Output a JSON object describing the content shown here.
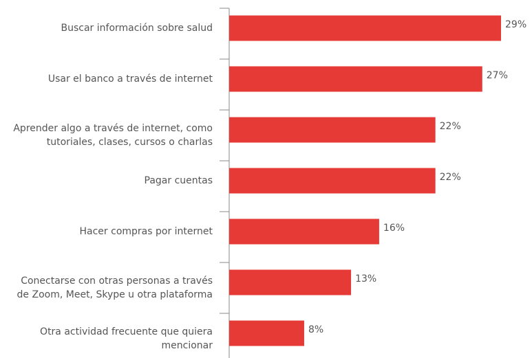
{
  "chart_data": {
    "type": "bar",
    "orientation": "horizontal",
    "categories": [
      "Buscar información sobre salud",
      "Usar el banco a través de internet",
      "Aprender algo a través de internet, como\ntutoriales, clases, cursos o charlas",
      "Pagar cuentas",
      "Hacer compras por internet",
      "Conectarse con otras personas a través\nde Zoom, Meet, Skype u otra plataforma",
      "Otra actividad frecuente que quiera\nmencionar"
    ],
    "values": [
      29,
      27,
      22,
      22,
      16,
      13,
      8
    ],
    "value_labels": [
      "29%",
      "27%",
      "22%",
      "22%",
      "16%",
      "13%",
      "8%"
    ],
    "color": "#e63a36"
  }
}
